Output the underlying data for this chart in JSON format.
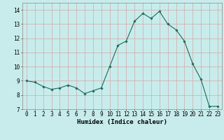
{
  "x": [
    0,
    1,
    2,
    3,
    4,
    5,
    6,
    7,
    8,
    9,
    10,
    11,
    12,
    13,
    14,
    15,
    16,
    17,
    18,
    19,
    20,
    21,
    22,
    23
  ],
  "y": [
    9.0,
    8.9,
    8.6,
    8.4,
    8.5,
    8.7,
    8.5,
    8.1,
    8.3,
    8.5,
    10.0,
    11.5,
    11.8,
    13.2,
    13.75,
    13.4,
    13.9,
    13.0,
    12.6,
    11.8,
    10.2,
    9.1,
    7.2,
    7.2
  ],
  "line_color": "#1a6b5a",
  "marker": "D",
  "marker_size": 1.8,
  "bg_color": "#c8ecec",
  "grid_color": "#d4a8a8",
  "xlabel": "Humidex (Indice chaleur)",
  "xlabel_fontsize": 6.5,
  "tick_fontsize": 5.5,
  "ylim": [
    7,
    14.5
  ],
  "yticks": [
    7,
    8,
    9,
    10,
    11,
    12,
    13,
    14
  ],
  "xlim": [
    -0.5,
    23.5
  ],
  "xticks": [
    0,
    1,
    2,
    3,
    4,
    5,
    6,
    7,
    8,
    9,
    10,
    11,
    12,
    13,
    14,
    15,
    16,
    17,
    18,
    19,
    20,
    21,
    22,
    23
  ]
}
